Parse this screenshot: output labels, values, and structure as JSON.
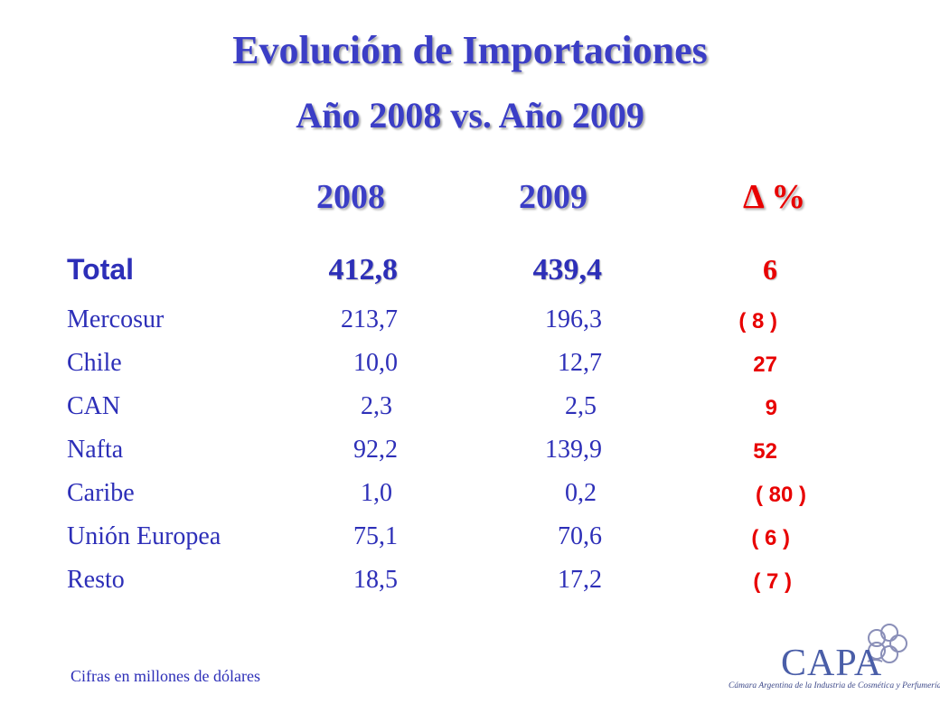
{
  "title": "Evolución de Importaciones",
  "subtitle": "Año 2008  vs.  Año 2009",
  "columns": {
    "y2008": "2008",
    "y2009": "2009",
    "delta": "Δ %"
  },
  "rows": [
    {
      "label": "Total",
      "v2008": "412,8",
      "v2009": "439,4",
      "delta": "6"
    },
    {
      "label": "Mercosur",
      "v2008": "213,7",
      "v2009": "196,3",
      "delta": "( 8 )"
    },
    {
      "label": "Chile",
      "v2008": "10,0",
      "v2009": "12,7",
      "delta": "27"
    },
    {
      "label": "CAN",
      "v2008": "2,3",
      "v2009": "2,5",
      "delta": "9"
    },
    {
      "label": "Nafta",
      "v2008": "92,2",
      "v2009": "139,9",
      "delta": "52"
    },
    {
      "label": "Caribe",
      "v2008": "1,0",
      "v2009": "0,2",
      "delta": "( 80 )"
    },
    {
      "label": "Unión Europea",
      "v2008": "75,1",
      "v2009": "70,6",
      "delta": "( 6 )"
    },
    {
      "label": "Resto",
      "v2008": "18,5",
      "v2009": "17,2",
      "delta": "( 7 )"
    }
  ],
  "footnote": "Cifras en millones de dólares",
  "logo": {
    "name": "CAPA",
    "tagline": "Cámara Argentina de la Industria de Cosmética y Perfumería"
  },
  "colors": {
    "title": "#3B3EC6",
    "text": "#2D2FB8",
    "delta": "#E80000"
  }
}
